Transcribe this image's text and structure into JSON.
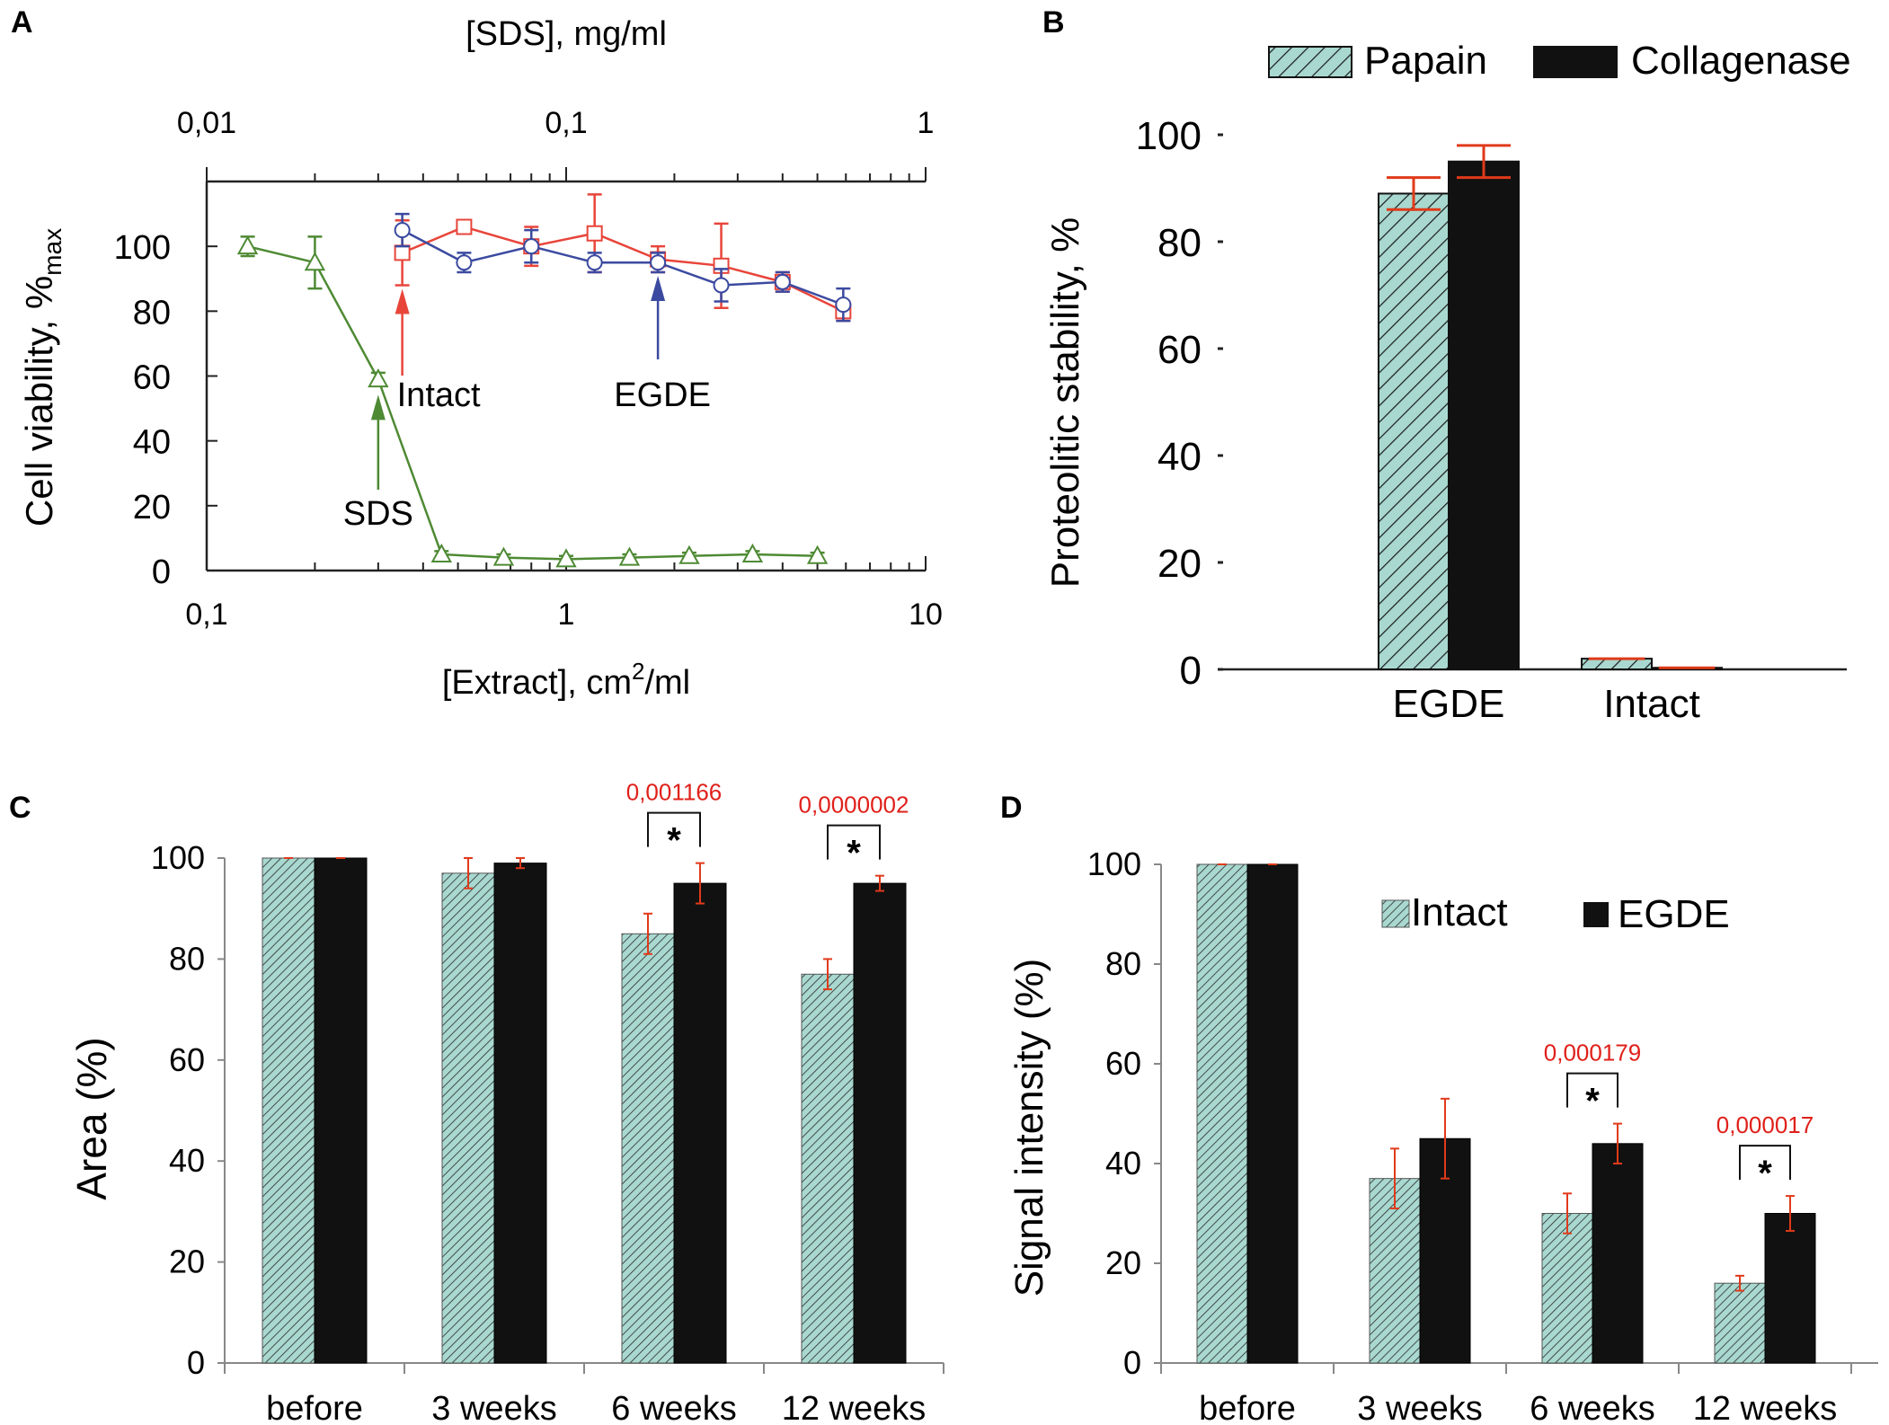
{
  "colors": {
    "hatch_fill": "#a8d8cf",
    "dark_bar": "#111111",
    "error_red": "#e03a1a",
    "pvalue_red": "#e0201a",
    "sds_green": "#4e8a34",
    "intact_red": "#e8453a",
    "egde_blue": "#3b4aa0",
    "axis": "#222222"
  },
  "chart_data": [
    {
      "id": "A",
      "panel_label": "A",
      "type": "line",
      "xscale": "log",
      "xlim": [
        0.1,
        10
      ],
      "xticks": [
        "0,1",
        "1",
        "10"
      ],
      "xlabel": "[Extract], cm",
      "xlabel_sup": "2",
      "xlabel_tail": "/ml",
      "top_axis": {
        "label": "[SDS], mg/ml",
        "lim": [
          0.01,
          1
        ],
        "ticks": [
          "0,01",
          "0,1",
          "1"
        ]
      },
      "ylabel": "Cell viability, %",
      "ylabel_sub": "max",
      "ylim": [
        0,
        120
      ],
      "yticks": [
        "0",
        "20",
        "40",
        "60",
        "80",
        "100"
      ],
      "series": [
        {
          "name": "SDS",
          "marker": "triangle",
          "axis": "top",
          "x": [
            0.013,
            0.02,
            0.03,
            0.045,
            0.067,
            0.1,
            0.15,
            0.22,
            0.33,
            0.5
          ],
          "y": [
            100,
            95,
            59,
            5,
            4,
            3.5,
            4,
            4.5,
            5,
            4.5
          ],
          "err": [
            3,
            8,
            2,
            1,
            1,
            1,
            1,
            1,
            1,
            1
          ]
        },
        {
          "name": "Intact",
          "marker": "square",
          "axis": "bottom",
          "x": [
            0.35,
            0.52,
            0.8,
            1.2,
            1.8,
            2.7,
            4.0,
            5.9
          ],
          "y": [
            98,
            106,
            100,
            104,
            96,
            94,
            89,
            80
          ],
          "err": [
            10,
            2,
            6,
            12,
            4,
            13,
            3,
            3
          ]
        },
        {
          "name": "EGDE",
          "marker": "circle",
          "axis": "bottom",
          "x": [
            0.35,
            0.52,
            0.8,
            1.2,
            1.8,
            2.7,
            4.0,
            5.9
          ],
          "y": [
            105,
            95,
            100,
            95,
            95,
            88,
            89,
            82
          ],
          "err": [
            5,
            3,
            5,
            3,
            3,
            5,
            3,
            5
          ]
        }
      ],
      "annotations": [
        "Intact",
        "EGDE",
        "SDS"
      ]
    },
    {
      "id": "B",
      "panel_label": "B",
      "type": "bar",
      "categories": [
        "EGDE",
        "Intact"
      ],
      "series": [
        {
          "name": "Papain",
          "pattern": "hatch",
          "values": [
            89,
            2
          ],
          "err": [
            3,
            0
          ]
        },
        {
          "name": "Collagenase",
          "pattern": "solid",
          "values": [
            95,
            0.3
          ],
          "err": [
            3,
            0
          ]
        }
      ],
      "ylabel": "Proteolitic stability, %",
      "ylim": [
        0,
        100
      ],
      "yticks": [
        "0",
        "20",
        "40",
        "60",
        "80",
        "100"
      ],
      "legend": "top"
    },
    {
      "id": "C",
      "panel_label": "C",
      "type": "bar",
      "categories": [
        "before",
        "3 weeks",
        "6 weeks",
        "12 weeks"
      ],
      "series": [
        {
          "name": "Intact",
          "pattern": "hatch",
          "values": [
            100,
            97,
            85,
            77
          ],
          "err": [
            0,
            3,
            4,
            3
          ]
        },
        {
          "name": "EGDE",
          "pattern": "solid",
          "values": [
            100,
            99,
            95,
            95
          ],
          "err": [
            0,
            1,
            4,
            1.5
          ]
        }
      ],
      "ylabel": "Area (%)",
      "ylim": [
        0,
        100
      ],
      "yticks": [
        "0",
        "20",
        "40",
        "60",
        "80",
        "100"
      ],
      "significance": [
        {
          "category": "6 weeks",
          "p": "0,001166",
          "mark": "*"
        },
        {
          "category": "12 weeks",
          "p": "0,0000002",
          "mark": "*"
        }
      ]
    },
    {
      "id": "D",
      "panel_label": "D",
      "type": "bar",
      "categories": [
        "before",
        "3 weeks",
        "6 weeks",
        "12 weeks"
      ],
      "series": [
        {
          "name": "Intact",
          "pattern": "hatch",
          "values": [
            100,
            37,
            30,
            16
          ],
          "err": [
            0,
            6,
            4,
            1.5
          ]
        },
        {
          "name": "EGDE",
          "pattern": "solid",
          "values": [
            100,
            45,
            44,
            30
          ],
          "err": [
            0,
            8,
            4,
            3.5
          ]
        }
      ],
      "ylabel": "Signal intensity  (%)",
      "ylim": [
        0,
        100
      ],
      "yticks": [
        "0",
        "20",
        "40",
        "60",
        "80",
        "100"
      ],
      "legend": "inside-top-right",
      "significance": [
        {
          "category": "6 weeks",
          "p": "0,000179",
          "mark": "*"
        },
        {
          "category": "12 weeks",
          "p": "0,000017",
          "mark": "*"
        }
      ]
    }
  ]
}
